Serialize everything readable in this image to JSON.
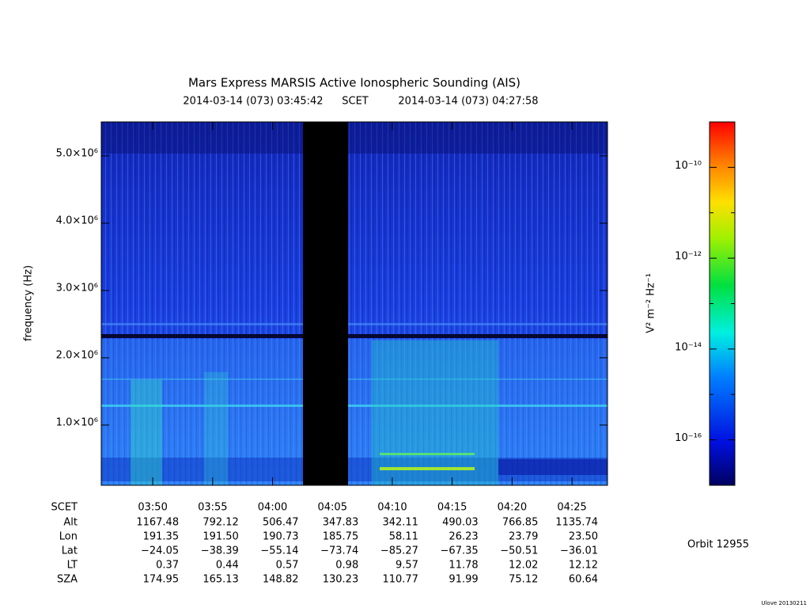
{
  "chart_data": {
    "type": "spectrogram",
    "title": "Mars Express MARSIS Active Ionospheric Sounding (AIS)",
    "subtitle": {
      "start": "2014-03-14 (073) 03:45:42",
      "frame": "SCET",
      "end": "2014-03-14 (073) 04:27:58"
    },
    "ylabel": "frequency (Hz)",
    "xlabel": "SCET",
    "xlim": [
      225.7,
      267.967
    ],
    "xticks": [
      {
        "value": 230,
        "label": "03:50"
      },
      {
        "value": 235,
        "label": "03:55"
      },
      {
        "value": 240,
        "label": "04:00"
      },
      {
        "value": 245,
        "label": "04:05"
      },
      {
        "value": 250,
        "label": "04:10"
      },
      {
        "value": 255,
        "label": "04:15"
      },
      {
        "value": 260,
        "label": "04:20"
      },
      {
        "value": 265,
        "label": "04:25"
      }
    ],
    "ylim": [
      105000,
      5505000
    ],
    "yticks": [
      {
        "value": 1000000,
        "label": "1.0×10⁶"
      },
      {
        "value": 2000000,
        "label": "2.0×10⁶"
      },
      {
        "value": 3000000,
        "label": "3.0×10⁶"
      },
      {
        "value": 4000000,
        "label": "4.0×10⁶"
      },
      {
        "value": 5000000,
        "label": "5.0×10⁶"
      }
    ],
    "colorbar": {
      "label": "V² m⁻² Hz⁻¹",
      "log": true,
      "zlim": [
        1e-17,
        1e-09
      ],
      "zticks": [
        {
          "value": 1e-10,
          "label": "10⁻¹⁰"
        },
        {
          "value": 1e-11,
          "label": null
        },
        {
          "value": 1e-12,
          "label": "10⁻¹²"
        },
        {
          "value": 1e-13,
          "label": null
        },
        {
          "value": 1e-14,
          "label": "10⁻¹⁴"
        },
        {
          "value": 1e-15,
          "label": null
        },
        {
          "value": 1e-16,
          "label": "10⁻¹⁶"
        }
      ]
    },
    "ephemeris": [
      {
        "label": "Alt",
        "values": [
          "1167.48",
          "792.12",
          "506.47",
          "347.83",
          "342.11",
          "490.03",
          "766.85",
          "1135.74"
        ]
      },
      {
        "label": "Lon",
        "values": [
          "191.35",
          "191.50",
          "190.73",
          "185.75",
          "58.11",
          "26.23",
          "23.79",
          "23.50"
        ]
      },
      {
        "label": "Lat",
        "values": [
          "−24.05",
          "−38.39",
          "−55.14",
          "−73.74",
          "−85.27",
          "−67.35",
          "−50.51",
          "−36.01"
        ]
      },
      {
        "label": "LT",
        "values": [
          "0.37",
          "0.44",
          "0.57",
          "0.98",
          "9.57",
          "11.78",
          "12.02",
          "12.12"
        ]
      },
      {
        "label": "SZA",
        "values": [
          "174.95",
          "165.13",
          "148.82",
          "130.23",
          "110.77",
          "91.99",
          "75.12",
          "60.64"
        ]
      }
    ],
    "orbit": "Orbit 12955",
    "footer": "Ulove 20130211"
  }
}
